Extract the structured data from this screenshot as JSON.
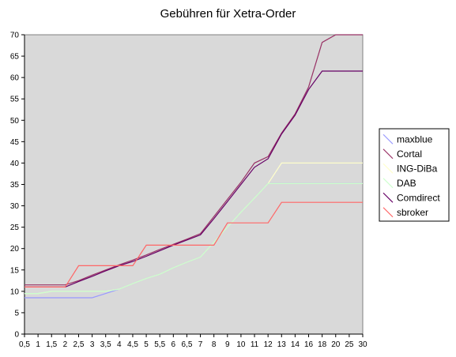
{
  "chart_data": {
    "type": "line",
    "title": "Gebühren für Xetra-Order",
    "xlabel": "",
    "ylabel": "",
    "ylim": [
      0,
      70
    ],
    "ytick_step": 5,
    "grid": false,
    "legend_position": "right",
    "plot_background": "#d9d9d9",
    "categories": [
      "0,5",
      "1",
      "1,5",
      "2",
      "2,5",
      "3",
      "3,5",
      "4",
      "4,5",
      "5",
      "5,5",
      "6",
      "6,5",
      "7",
      "8",
      "9",
      "10",
      "11",
      "12",
      "13",
      "14",
      "16",
      "18",
      "20",
      "25",
      "30"
    ],
    "series": [
      {
        "name": "maxblue",
        "color": "#9999ff",
        "values": [
          8.5,
          8.5,
          8.5,
          8.5,
          8.5,
          8.5,
          9.5,
          10.5,
          11.8,
          13,
          14,
          15.5,
          16.8,
          18,
          21.5,
          25,
          28.5,
          31.8,
          35.2,
          35.2,
          35.2,
          35.2,
          35.2,
          35.2,
          35.2,
          35.2
        ]
      },
      {
        "name": "Cortal",
        "color": "#993366",
        "values": [
          11.5,
          11.5,
          11.5,
          11.5,
          12.5,
          13.8,
          15,
          16.2,
          17.3,
          18.5,
          19.8,
          21,
          22.2,
          23.5,
          27.5,
          31.5,
          35.5,
          40,
          41.5,
          47,
          51.5,
          57.8,
          68.2,
          70,
          70,
          70
        ]
      },
      {
        "name": "ING-DiBa",
        "color": "#ffffcc",
        "values": [
          9.5,
          9.5,
          10,
          10,
          10,
          10,
          10,
          10.5,
          11.8,
          13,
          14,
          15.5,
          16.8,
          18,
          21.5,
          25,
          28.5,
          31.8,
          35.2,
          40,
          40,
          40,
          40,
          40,
          40,
          40
        ]
      },
      {
        "name": "DAB",
        "color": "#ccffcc",
        "values": [
          9.5,
          9.5,
          10,
          10,
          10,
          10,
          10,
          10.5,
          11.8,
          13,
          14,
          15.5,
          16.8,
          18,
          21.5,
          25,
          28.5,
          31.8,
          35.2,
          35.2,
          35.2,
          35.2,
          35.2,
          35.2,
          35.2,
          35.2
        ]
      },
      {
        "name": "Comdirect",
        "color": "#660066",
        "values": [
          11,
          11,
          11,
          11,
          12.3,
          13.5,
          14.8,
          16,
          17,
          18.2,
          19.5,
          20.8,
          22,
          23.2,
          27,
          31,
          35,
          39,
          41,
          46.8,
          51.2,
          57.2,
          61.5,
          61.5,
          61.5,
          61.5
        ]
      },
      {
        "name": "sbroker",
        "color": "#ff6666",
        "values": [
          11,
          11,
          11,
          11,
          16,
          16,
          16,
          16,
          16,
          20.8,
          20.8,
          20.8,
          20.8,
          20.8,
          20.8,
          26,
          26,
          26,
          26,
          30.8,
          30.8,
          30.8,
          30.8,
          30.8,
          30.8,
          30.8
        ]
      }
    ]
  }
}
